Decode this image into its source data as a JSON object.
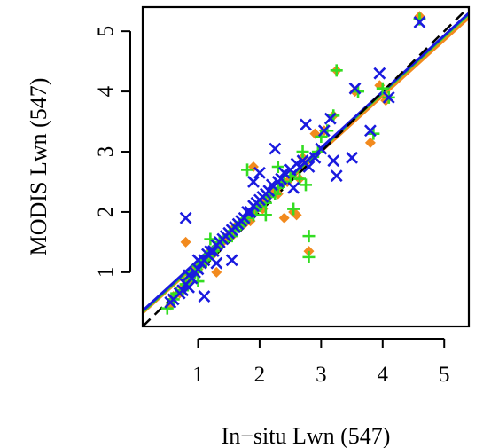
{
  "chart_data": {
    "type": "scatter",
    "title": "",
    "xlabel": "In−situ Lwn (547)",
    "ylabel": "MODIS Lwn (547)",
    "xlim": [
      0.1,
      5.4
    ],
    "ylim": [
      0.1,
      5.4
    ],
    "x_ticks": [
      1,
      2,
      3,
      4,
      5
    ],
    "y_ticks": [
      1,
      2,
      3,
      4,
      5
    ],
    "x_tick_labels": [
      "1",
      "2",
      "3",
      "4",
      "5"
    ],
    "y_tick_labels": [
      "1",
      "2",
      "3",
      "4",
      "5"
    ],
    "grid": false,
    "legend": "none",
    "colors": {
      "orange": "#f28a1e",
      "green": "#33dd22",
      "blue": "#1a1adf",
      "reference": "#000000"
    },
    "series": [
      {
        "marker": "diamond",
        "color": "#f28a1e",
        "x": [
          0.55,
          0.6,
          0.7,
          0.75,
          0.8,
          0.85,
          0.9,
          0.95,
          1.0,
          1.05,
          1.1,
          1.15,
          1.2,
          1.25,
          1.3,
          1.35,
          1.4,
          1.45,
          1.5,
          1.55,
          1.6,
          1.7,
          1.75,
          1.8,
          1.85,
          1.9,
          2.0,
          2.05,
          2.1,
          2.2,
          2.3,
          2.45,
          2.55,
          2.65,
          2.7,
          2.8,
          2.9,
          3.05,
          3.2,
          3.25,
          3.55,
          3.8,
          3.95,
          4.05,
          4.6,
          0.8,
          1.3,
          1.9,
          2.4,
          2.6
        ],
        "y": [
          0.45,
          0.6,
          0.65,
          0.75,
          0.8,
          0.85,
          0.95,
          1.05,
          1.05,
          1.15,
          1.15,
          1.25,
          1.35,
          1.3,
          1.4,
          1.45,
          1.5,
          1.55,
          1.6,
          1.6,
          1.75,
          1.8,
          1.8,
          1.9,
          1.85,
          2.0,
          2.1,
          2.05,
          2.2,
          2.35,
          2.3,
          2.5,
          2.0,
          2.55,
          2.9,
          1.35,
          3.3,
          3.35,
          3.6,
          4.35,
          4.0,
          3.15,
          4.1,
          3.85,
          5.25,
          1.5,
          1.0,
          2.75,
          1.9,
          1.95
        ]
      },
      {
        "marker": "plus",
        "color": "#33dd22",
        "x": [
          0.5,
          0.6,
          0.65,
          0.75,
          0.8,
          0.85,
          0.9,
          0.95,
          1.0,
          1.05,
          1.1,
          1.15,
          1.2,
          1.25,
          1.3,
          1.35,
          1.4,
          1.5,
          1.55,
          1.6,
          1.65,
          1.7,
          1.75,
          1.8,
          1.9,
          1.95,
          2.0,
          2.1,
          2.15,
          2.25,
          2.3,
          2.4,
          2.5,
          2.55,
          2.65,
          2.7,
          2.8,
          2.8,
          2.95,
          3.0,
          3.1,
          3.2,
          3.25,
          3.6,
          3.85,
          4.0,
          4.1,
          4.6,
          1.2,
          1.8,
          2.1,
          2.3,
          1.0,
          2.75
        ],
        "y": [
          0.4,
          0.55,
          0.65,
          0.7,
          0.8,
          0.9,
          0.95,
          1.0,
          1.1,
          1.1,
          1.2,
          1.25,
          1.3,
          1.35,
          1.4,
          1.5,
          1.5,
          1.6,
          1.6,
          1.7,
          1.75,
          1.8,
          1.85,
          1.9,
          1.95,
          2.05,
          2.1,
          2.15,
          2.25,
          2.3,
          2.4,
          2.5,
          2.6,
          2.05,
          2.55,
          3.0,
          1.25,
          1.6,
          3.0,
          3.25,
          3.35,
          3.6,
          4.35,
          4.0,
          3.3,
          4.05,
          3.9,
          5.2,
          1.55,
          2.7,
          1.95,
          2.75,
          0.85,
          2.45
        ]
      },
      {
        "marker": "cross",
        "color": "#1a1adf",
        "x": [
          0.55,
          0.6,
          0.7,
          0.75,
          0.8,
          0.85,
          0.85,
          0.9,
          0.95,
          1.0,
          1.0,
          1.05,
          1.1,
          1.15,
          1.2,
          1.25,
          1.3,
          1.35,
          1.4,
          1.45,
          1.5,
          1.55,
          1.6,
          1.65,
          1.7,
          1.75,
          1.8,
          1.85,
          1.9,
          1.95,
          2.0,
          2.05,
          2.1,
          2.15,
          2.2,
          2.3,
          2.35,
          2.4,
          2.5,
          2.55,
          2.6,
          2.7,
          2.75,
          2.8,
          2.9,
          3.0,
          3.05,
          3.15,
          3.2,
          3.25,
          3.5,
          3.55,
          3.8,
          3.95,
          4.1,
          4.6,
          0.8,
          1.1,
          1.3,
          1.9,
          2.0,
          1.55,
          2.25
        ],
        "y": [
          0.5,
          0.55,
          0.65,
          0.7,
          0.8,
          0.75,
          0.95,
          0.9,
          1.0,
          1.05,
          1.2,
          1.15,
          1.2,
          1.3,
          1.35,
          1.35,
          1.45,
          1.5,
          1.55,
          1.6,
          1.65,
          1.7,
          1.75,
          1.8,
          1.85,
          1.9,
          2.0,
          2.0,
          2.1,
          2.15,
          2.2,
          2.25,
          2.3,
          2.35,
          2.45,
          2.5,
          2.55,
          2.65,
          2.7,
          2.4,
          2.8,
          2.85,
          3.45,
          2.75,
          2.9,
          3.05,
          3.35,
          3.55,
          2.85,
          2.6,
          2.9,
          4.05,
          3.35,
          4.3,
          3.9,
          5.15,
          1.9,
          0.6,
          1.15,
          2.5,
          2.65,
          1.2,
          3.05
        ]
      }
    ],
    "fit_lines": [
      {
        "name": "",
        "color": "#f28a1e",
        "style": "solid",
        "points": [
          [
            0.1,
            0.32
          ],
          [
            5.4,
            5.22
          ]
        ]
      },
      {
        "name": "",
        "color": "#33dd22",
        "style": "solid",
        "points": [
          [
            0.1,
            0.34
          ],
          [
            5.4,
            5.28
          ]
        ]
      },
      {
        "name": "",
        "color": "#1a1adf",
        "style": "solid",
        "points": [
          [
            0.1,
            0.36
          ],
          [
            5.4,
            5.3
          ]
        ]
      },
      {
        "name": "",
        "color": "#000000",
        "style": "dashed",
        "points": [
          [
            0.1,
            0.1
          ],
          [
            5.4,
            5.4
          ]
        ]
      }
    ]
  }
}
